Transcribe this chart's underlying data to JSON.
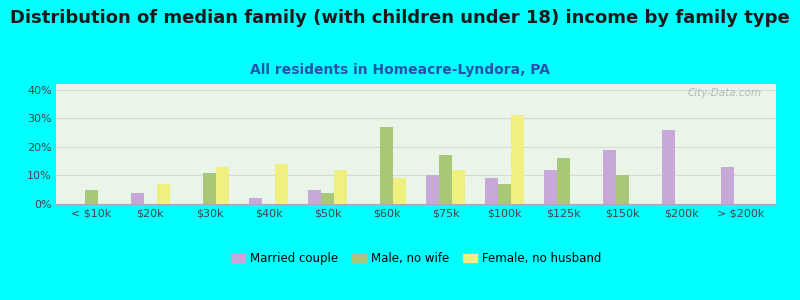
{
  "title": "Distribution of median family (with children under 18) income by family type",
  "subtitle": "All residents in Homeacre-Lyndora, PA",
  "categories": [
    "< $10k",
    "$20k",
    "$30k",
    "$40k",
    "$50k",
    "$60k",
    "$75k",
    "$100k",
    "$125k",
    "$150k",
    "$200k",
    "> $200k"
  ],
  "married_couple": [
    0,
    4,
    0,
    2,
    5,
    0,
    10,
    9,
    12,
    19,
    26,
    13
  ],
  "male_no_wife": [
    5,
    0,
    11,
    0,
    4,
    27,
    17,
    7,
    16,
    10,
    0,
    0
  ],
  "female_no_husband": [
    0,
    7,
    13,
    14,
    12,
    9,
    12,
    31,
    0,
    0,
    0,
    0
  ],
  "colors": {
    "married_couple": "#c8a8d8",
    "male_no_wife": "#a8c878",
    "female_no_husband": "#f0f080"
  },
  "bar_width": 0.22,
  "ylim": [
    0,
    42
  ],
  "yticks": [
    0,
    10,
    20,
    30,
    40
  ],
  "background_color": "#00ffff",
  "plot_bg_color": "#e8f5e8",
  "grid_color": "#d8d8d8",
  "title_fontsize": 13,
  "subtitle_fontsize": 10,
  "tick_fontsize": 8,
  "legend_labels": [
    "Married couple",
    "Male, no wife",
    "Female, no husband"
  ],
  "watermark": "City-Data.com"
}
